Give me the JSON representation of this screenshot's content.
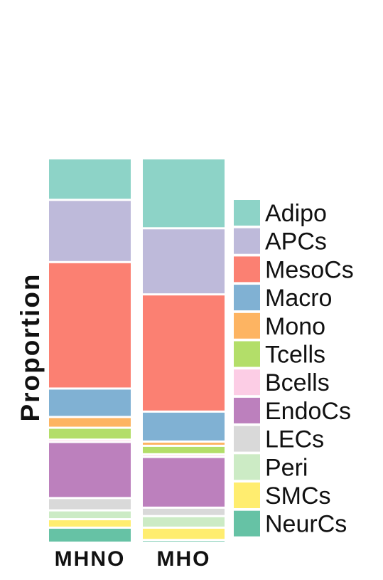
{
  "chart_data": {
    "type": "bar",
    "stacked": true,
    "normalized": true,
    "title": "",
    "xlabel": "",
    "ylabel": "Proportion",
    "ylim": [
      0,
      1
    ],
    "grid": false,
    "legend_position": "right",
    "categories": [
      "MHNO",
      "MHO"
    ],
    "series": [
      {
        "name": "Adipo",
        "color": "#8dd3c7",
        "values": [
          0.108,
          0.182
        ]
      },
      {
        "name": "APCs",
        "color": "#bebada",
        "values": [
          0.162,
          0.172
        ]
      },
      {
        "name": "MesoCs",
        "color": "#fb8072",
        "values": [
          0.329,
          0.305
        ]
      },
      {
        "name": "Macro",
        "color": "#80b1d3",
        "values": [
          0.074,
          0.078
        ]
      },
      {
        "name": "Mono",
        "color": "#fdb462",
        "values": [
          0.028,
          0.011
        ]
      },
      {
        "name": "Tcells",
        "color": "#b3de69",
        "values": [
          0.031,
          0.022
        ]
      },
      {
        "name": "Bcells",
        "color": "#fccde5",
        "values": [
          0.006,
          0.007
        ]
      },
      {
        "name": "EndoCs",
        "color": "#bc80bd",
        "values": [
          0.146,
          0.132
        ]
      },
      {
        "name": "LECs",
        "color": "#d9d9d9",
        "values": [
          0.032,
          0.022
        ]
      },
      {
        "name": "Peri",
        "color": "#ccebc5",
        "values": [
          0.023,
          0.03
        ]
      },
      {
        "name": "SMCs",
        "color": "#ffed6f",
        "values": [
          0.022,
          0.032
        ]
      },
      {
        "name": "NeurCs",
        "color": "#66c2a5",
        "values": [
          0.039,
          0.007
        ]
      }
    ]
  }
}
